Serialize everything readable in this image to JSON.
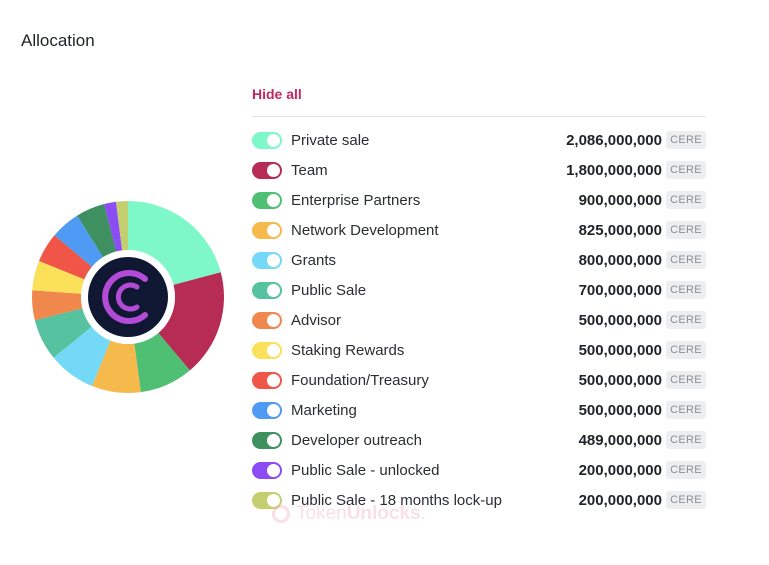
{
  "header": {
    "title": "Allocation"
  },
  "controls": {
    "hide_all_label": "Hide all"
  },
  "logo": {
    "icon": "cere-logo-icon",
    "background": "#0f1733",
    "accent": "#b44bd6"
  },
  "watermark": {
    "text_regular": "Token",
    "text_bold": "Unlocks",
    "suffix": "."
  },
  "chart_data": {
    "type": "pie",
    "style": "donut",
    "unit": "CERE",
    "categories": [
      "Private sale",
      "Team",
      "Enterprise Partners",
      "Network Development",
      "Grants",
      "Public Sale",
      "Advisor",
      "Staking Rewards",
      "Foundation/Treasury",
      "Marketing",
      "Developer outreach",
      "Public Sale - unlocked",
      "Public Sale - 18 months lock-up"
    ],
    "values": [
      2086000000,
      1800000000,
      900000000,
      825000000,
      800000000,
      700000000,
      500000000,
      500000000,
      500000000,
      500000000,
      489000000,
      200000000,
      200000000
    ],
    "display_values": [
      "2,086,000,000",
      "1,800,000,000",
      "900,000,000",
      "825,000,000",
      "800,000,000",
      "700,000,000",
      "500,000,000",
      "500,000,000",
      "500,000,000",
      "500,000,000",
      "489,000,000",
      "200,000,000",
      "200,000,000"
    ],
    "colors": [
      "#7ef7c9",
      "#b72c55",
      "#4fbf74",
      "#f6b94b",
      "#73d9f7",
      "#56c29f",
      "#f0874c",
      "#fbe159",
      "#ef5647",
      "#4f9bf4",
      "#3e9060",
      "#8b4cf4",
      "#c3cf6e"
    ],
    "enabled": [
      true,
      true,
      true,
      true,
      true,
      true,
      true,
      true,
      true,
      true,
      true,
      true,
      true
    ],
    "legend": "right"
  }
}
